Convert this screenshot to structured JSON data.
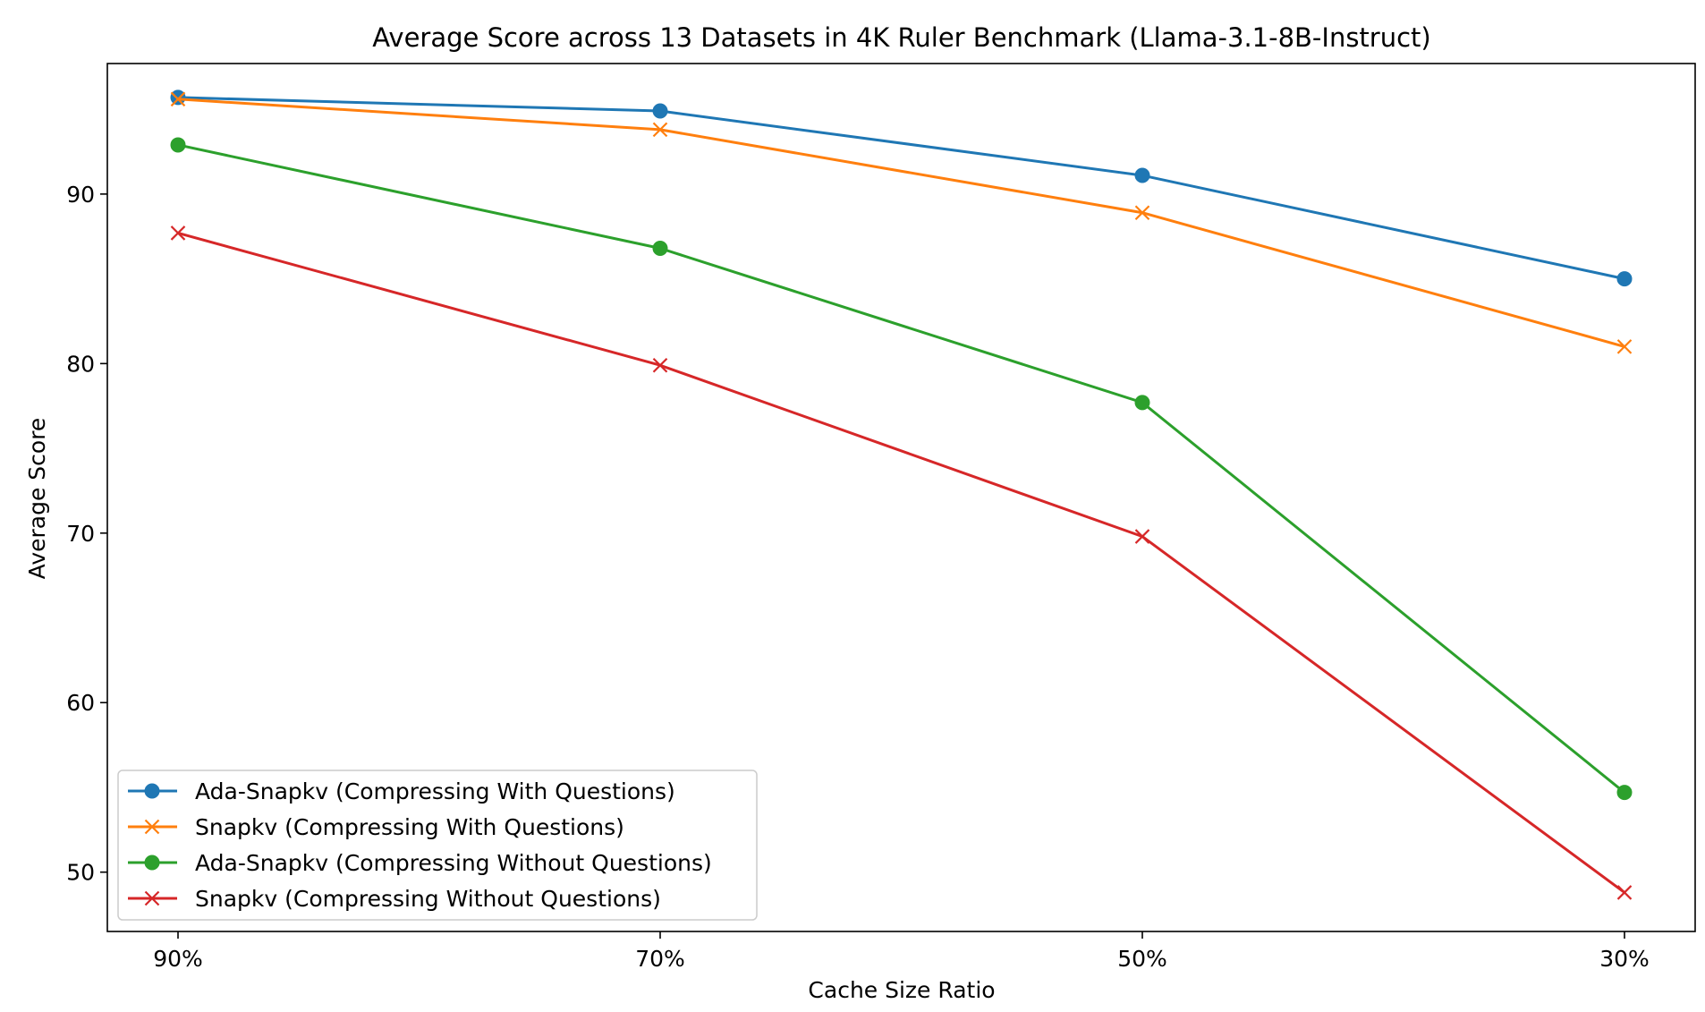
{
  "chart_data": {
    "type": "line",
    "title": "Average Score across 13 Datasets in 4K Ruler Benchmark (Llama-3.1-8B-Instruct)",
    "xlabel": "Cache Size Ratio",
    "ylabel": "Average Score",
    "categories": [
      "90%",
      "70%",
      "50%",
      "30%"
    ],
    "ylim": [
      46.5,
      97.7
    ],
    "yticks": [
      50,
      60,
      70,
      80,
      90
    ],
    "grid": false,
    "legend_position": "lower-left",
    "series": [
      {
        "name": "Ada-Snapkv (Compressing With Questions)",
        "values": [
          95.7,
          94.9,
          91.1,
          85.0
        ],
        "color": "#1f77b4",
        "marker": "circle"
      },
      {
        "name": "Snapkv (Compressing With Questions)",
        "values": [
          95.6,
          93.8,
          88.9,
          81.0
        ],
        "color": "#ff7f0e",
        "marker": "x"
      },
      {
        "name": "Ada-Snapkv (Compressing Without Questions)",
        "values": [
          92.9,
          86.8,
          77.7,
          54.7
        ],
        "color": "#2ca02c",
        "marker": "circle"
      },
      {
        "name": "Snapkv (Compressing Without Questions)",
        "values": [
          87.7,
          79.9,
          69.8,
          48.8
        ],
        "color": "#d62728",
        "marker": "x"
      }
    ]
  }
}
